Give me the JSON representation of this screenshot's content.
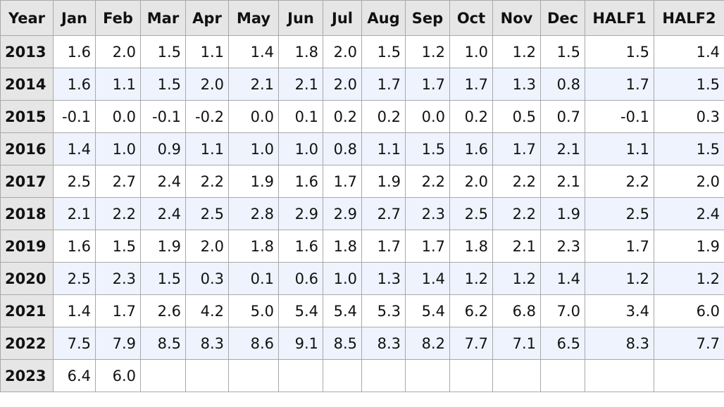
{
  "table": {
    "headers": [
      "Year",
      "Jan",
      "Feb",
      "Mar",
      "Apr",
      "May",
      "Jun",
      "Jul",
      "Aug",
      "Sep",
      "Oct",
      "Nov",
      "Dec",
      "HALF1",
      "HALF2"
    ],
    "rows": [
      {
        "year": "2013",
        "values": [
          "1.6",
          "2.0",
          "1.5",
          "1.1",
          "1.4",
          "1.8",
          "2.0",
          "1.5",
          "1.2",
          "1.0",
          "1.2",
          "1.5",
          "1.5",
          "1.4"
        ]
      },
      {
        "year": "2014",
        "values": [
          "1.6",
          "1.1",
          "1.5",
          "2.0",
          "2.1",
          "2.1",
          "2.0",
          "1.7",
          "1.7",
          "1.7",
          "1.3",
          "0.8",
          "1.7",
          "1.5"
        ]
      },
      {
        "year": "2015",
        "values": [
          "-0.1",
          "0.0",
          "-0.1",
          "-0.2",
          "0.0",
          "0.1",
          "0.2",
          "0.2",
          "0.0",
          "0.2",
          "0.5",
          "0.7",
          "-0.1",
          "0.3"
        ]
      },
      {
        "year": "2016",
        "values": [
          "1.4",
          "1.0",
          "0.9",
          "1.1",
          "1.0",
          "1.0",
          "0.8",
          "1.1",
          "1.5",
          "1.6",
          "1.7",
          "2.1",
          "1.1",
          "1.5"
        ]
      },
      {
        "year": "2017",
        "values": [
          "2.5",
          "2.7",
          "2.4",
          "2.2",
          "1.9",
          "1.6",
          "1.7",
          "1.9",
          "2.2",
          "2.0",
          "2.2",
          "2.1",
          "2.2",
          "2.0"
        ]
      },
      {
        "year": "2018",
        "values": [
          "2.1",
          "2.2",
          "2.4",
          "2.5",
          "2.8",
          "2.9",
          "2.9",
          "2.7",
          "2.3",
          "2.5",
          "2.2",
          "1.9",
          "2.5",
          "2.4"
        ]
      },
      {
        "year": "2019",
        "values": [
          "1.6",
          "1.5",
          "1.9",
          "2.0",
          "1.8",
          "1.6",
          "1.8",
          "1.7",
          "1.7",
          "1.8",
          "2.1",
          "2.3",
          "1.7",
          "1.9"
        ]
      },
      {
        "year": "2020",
        "values": [
          "2.5",
          "2.3",
          "1.5",
          "0.3",
          "0.1",
          "0.6",
          "1.0",
          "1.3",
          "1.4",
          "1.2",
          "1.2",
          "1.4",
          "1.2",
          "1.2"
        ]
      },
      {
        "year": "2021",
        "values": [
          "1.4",
          "1.7",
          "2.6",
          "4.2",
          "5.0",
          "5.4",
          "5.4",
          "5.3",
          "5.4",
          "6.2",
          "6.8",
          "7.0",
          "3.4",
          "6.0"
        ]
      },
      {
        "year": "2022",
        "values": [
          "7.5",
          "7.9",
          "8.5",
          "8.3",
          "8.6",
          "9.1",
          "8.5",
          "8.3",
          "8.2",
          "7.7",
          "7.1",
          "6.5",
          "8.3",
          "7.7"
        ]
      },
      {
        "year": "2023",
        "values": [
          "6.4",
          "6.0",
          "",
          "",
          "",
          "",
          "",
          "",
          "",
          "",
          "",
          "",
          "",
          ""
        ]
      }
    ]
  }
}
